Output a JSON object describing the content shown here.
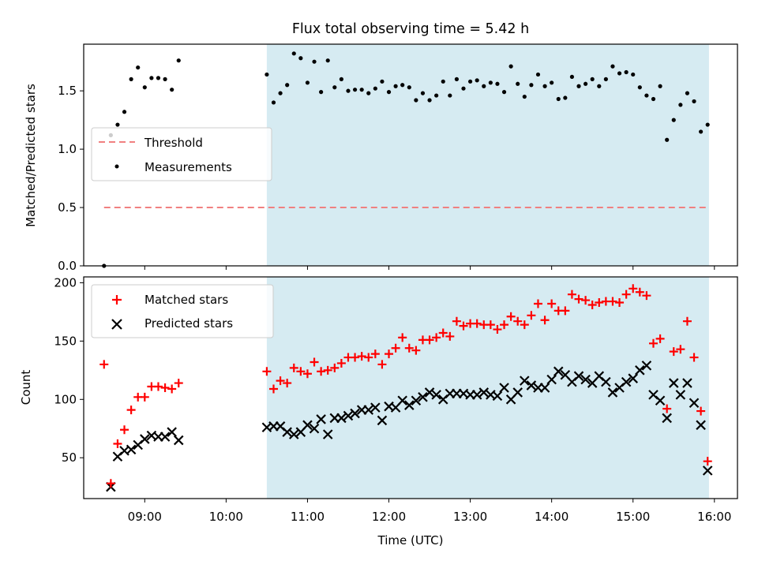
{
  "figure": {
    "title": "Flux total observing time = 5.42 h",
    "xlabel": "Time (UTC)"
  },
  "colors": {
    "shade": "#add8e6",
    "threshold": "#f08080",
    "matched": "#ff0000",
    "predicted": "#000000",
    "measurement": "#000000"
  },
  "chart_data": [
    {
      "type": "scatter",
      "ylabel": "Matched/Predicted stars",
      "xlim": [
        "08:15",
        "16:17"
      ],
      "ylim": [
        0,
        1.9
      ],
      "yticks": [
        0.0,
        0.5,
        1.0,
        1.5
      ],
      "ytick_labels": [
        "0.0",
        "0.5",
        "1.0",
        "1.5"
      ],
      "shaded_region": {
        "x_start": "10:30",
        "x_end": "15:56"
      },
      "threshold": {
        "name": "Threshold",
        "y": 0.5,
        "x_start": "08:30",
        "x_end": "15:56",
        "style": "dashed"
      },
      "legend": {
        "position": "center-left",
        "entries": [
          "Threshold",
          "Measurements"
        ]
      },
      "series": [
        {
          "name": "Measurements",
          "marker": "dot",
          "x": [
            "08:30",
            "08:35",
            "08:40",
            "08:45",
            "08:50",
            "08:55",
            "09:00",
            "09:05",
            "09:10",
            "09:15",
            "09:20",
            "09:25",
            "10:30",
            "10:35",
            "10:40",
            "10:45",
            "10:50",
            "10:55",
            "11:00",
            "11:05",
            "11:10",
            "11:15",
            "11:20",
            "11:25",
            "11:30",
            "11:35",
            "11:40",
            "11:45",
            "11:50",
            "11:55",
            "12:00",
            "12:05",
            "12:10",
            "12:15",
            "12:20",
            "12:25",
            "12:30",
            "12:35",
            "12:40",
            "12:45",
            "12:50",
            "12:55",
            "13:00",
            "13:05",
            "13:10",
            "13:15",
            "13:20",
            "13:25",
            "13:30",
            "13:35",
            "13:40",
            "13:45",
            "13:50",
            "13:55",
            "14:00",
            "14:05",
            "14:10",
            "14:15",
            "14:20",
            "14:25",
            "14:30",
            "14:35",
            "14:40",
            "14:45",
            "14:50",
            "14:55",
            "15:00",
            "15:05",
            "15:10",
            "15:15",
            "15:20",
            "15:25",
            "15:30",
            "15:35",
            "15:40",
            "15:45",
            "15:50",
            "15:55"
          ],
          "y": [
            0.0,
            1.12,
            1.21,
            1.32,
            1.6,
            1.7,
            1.53,
            1.61,
            1.61,
            1.6,
            1.51,
            1.76,
            1.64,
            1.4,
            1.48,
            1.55,
            1.82,
            1.78,
            1.57,
            1.75,
            1.49,
            1.76,
            1.53,
            1.6,
            1.5,
            1.51,
            1.51,
            1.48,
            1.52,
            1.58,
            1.49,
            1.54,
            1.55,
            1.53,
            1.42,
            1.48,
            1.42,
            1.46,
            1.58,
            1.46,
            1.6,
            1.52,
            1.58,
            1.59,
            1.54,
            1.57,
            1.56,
            1.49,
            1.71,
            1.56,
            1.45,
            1.55,
            1.64,
            1.54,
            1.57,
            1.43,
            1.44,
            1.62,
            1.54,
            1.56,
            1.6,
            1.54,
            1.6,
            1.71,
            1.65,
            1.66,
            1.64,
            1.53,
            1.46,
            1.43,
            1.54,
            1.08,
            1.25,
            1.38,
            1.48,
            1.41,
            1.15,
            1.21
          ]
        }
      ]
    },
    {
      "type": "scatter",
      "ylabel": "Count",
      "xlim": [
        "08:15",
        "16:17"
      ],
      "ylim": [
        15,
        205
      ],
      "yticks": [
        50,
        100,
        150,
        200
      ],
      "ytick_labels": [
        "50",
        "100",
        "150",
        "200"
      ],
      "xticks": [
        "09:00",
        "10:00",
        "11:00",
        "12:00",
        "13:00",
        "14:00",
        "15:00",
        "16:00"
      ],
      "shaded_region": {
        "x_start": "10:30",
        "x_end": "15:56"
      },
      "legend": {
        "position": "top-left",
        "entries": [
          "Matched stars",
          "Predicted stars"
        ]
      },
      "series": [
        {
          "name": "Matched stars",
          "marker": "plus",
          "x": [
            "08:30",
            "08:35",
            "08:40",
            "08:45",
            "08:50",
            "08:55",
            "09:00",
            "09:05",
            "09:10",
            "09:15",
            "09:20",
            "09:25",
            "10:30",
            "10:35",
            "10:40",
            "10:45",
            "10:50",
            "10:55",
            "11:00",
            "11:05",
            "11:10",
            "11:15",
            "11:20",
            "11:25",
            "11:30",
            "11:35",
            "11:40",
            "11:45",
            "11:50",
            "11:55",
            "12:00",
            "12:05",
            "12:10",
            "12:15",
            "12:20",
            "12:25",
            "12:30",
            "12:35",
            "12:40",
            "12:45",
            "12:50",
            "12:55",
            "13:00",
            "13:05",
            "13:10",
            "13:15",
            "13:20",
            "13:25",
            "13:30",
            "13:35",
            "13:40",
            "13:45",
            "13:50",
            "13:55",
            "14:00",
            "14:05",
            "14:10",
            "14:15",
            "14:20",
            "14:25",
            "14:30",
            "14:35",
            "14:40",
            "14:45",
            "14:50",
            "14:55",
            "15:00",
            "15:05",
            "15:10",
            "15:15",
            "15:20",
            "15:25",
            "15:30",
            "15:35",
            "15:40",
            "15:45",
            "15:50",
            "15:55"
          ],
          "y": [
            130,
            28,
            62,
            74,
            91,
            102,
            102,
            111,
            111,
            110,
            109,
            114,
            124,
            109,
            116,
            114,
            127,
            124,
            122,
            132,
            124,
            125,
            127,
            131,
            136,
            136,
            137,
            136,
            139,
            130,
            139,
            144,
            153,
            144,
            142,
            151,
            151,
            153,
            157,
            154,
            167,
            163,
            165,
            165,
            164,
            164,
            160,
            164,
            171,
            167,
            164,
            172,
            182,
            168,
            182,
            176,
            176,
            190,
            186,
            185,
            181,
            183,
            184,
            184,
            183,
            190,
            195,
            192,
            189,
            148,
            152,
            92,
            141,
            143,
            167,
            136,
            90,
            47
          ]
        },
        {
          "name": "Predicted stars",
          "marker": "x",
          "x": [
            "08:35",
            "08:40",
            "08:45",
            "08:50",
            "08:55",
            "09:00",
            "09:05",
            "09:10",
            "09:15",
            "09:20",
            "09:25",
            "10:30",
            "10:35",
            "10:40",
            "10:45",
            "10:50",
            "10:55",
            "11:00",
            "11:05",
            "11:10",
            "11:15",
            "11:20",
            "11:25",
            "11:30",
            "11:35",
            "11:40",
            "11:45",
            "11:50",
            "11:55",
            "12:00",
            "12:05",
            "12:10",
            "12:15",
            "12:20",
            "12:25",
            "12:30",
            "12:35",
            "12:40",
            "12:45",
            "12:50",
            "12:55",
            "13:00",
            "13:05",
            "13:10",
            "13:15",
            "13:20",
            "13:25",
            "13:30",
            "13:35",
            "13:40",
            "13:45",
            "13:50",
            "13:55",
            "14:00",
            "14:05",
            "14:10",
            "14:15",
            "14:20",
            "14:25",
            "14:30",
            "14:35",
            "14:40",
            "14:45",
            "14:50",
            "14:55",
            "15:00",
            "15:05",
            "15:10",
            "15:15",
            "15:20",
            "15:25",
            "15:30",
            "15:35",
            "15:40",
            "15:45",
            "15:50",
            "15:55"
          ],
          "y": [
            25,
            51,
            56,
            57,
            61,
            66,
            69,
            68,
            68,
            72,
            65,
            76,
            77,
            77,
            72,
            70,
            72,
            78,
            75,
            83,
            70,
            84,
            84,
            86,
            88,
            91,
            91,
            93,
            82,
            94,
            93,
            99,
            95,
            99,
            102,
            106,
            104,
            100,
            105,
            105,
            105,
            104,
            104,
            106,
            104,
            103,
            110,
            100,
            106,
            116,
            112,
            110,
            110,
            117,
            124,
            121,
            115,
            120,
            117,
            114,
            120,
            115,
            106,
            110,
            115,
            118,
            125,
            129,
            104,
            99,
            84,
            114,
            104,
            114,
            97,
            78,
            39
          ]
        }
      ]
    }
  ]
}
